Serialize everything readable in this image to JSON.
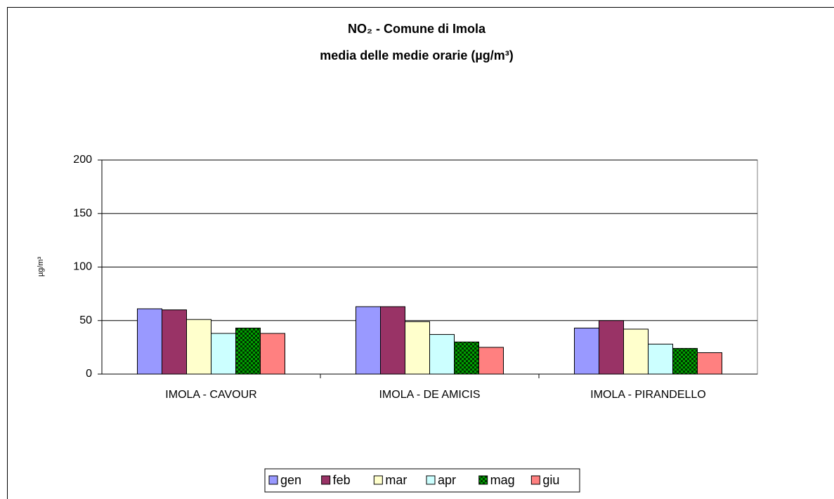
{
  "chart_data": {
    "type": "bar",
    "title": "NO₂ - Comune di Imola",
    "subtitle": "media delle medie orarie (µg/m³)",
    "y_label": "µg/m³",
    "categories": [
      "IMOLA - CAVOUR",
      "IMOLA - DE AMICIS",
      "IMOLA - PIRANDELLO"
    ],
    "series": [
      {
        "name": "gen",
        "color": "#9999ff",
        "values": [
          61,
          63,
          43
        ]
      },
      {
        "name": "feb",
        "color": "#993366",
        "values": [
          60,
          63,
          50
        ]
      },
      {
        "name": "mar",
        "color": "#ffffcc",
        "values": [
          51,
          49,
          42
        ]
      },
      {
        "name": "apr",
        "color": "#ccffff",
        "values": [
          38,
          37,
          28
        ]
      },
      {
        "name": "mag",
        "color": "#00a000",
        "values": [
          43,
          30,
          24
        ]
      },
      {
        "name": "giu",
        "color": "#ff8080",
        "values": [
          38,
          25,
          20
        ]
      }
    ],
    "ylim": [
      0,
      200
    ],
    "yticks": [
      0,
      50,
      100,
      150,
      200
    ],
    "grid": true,
    "legend": "bottom"
  }
}
